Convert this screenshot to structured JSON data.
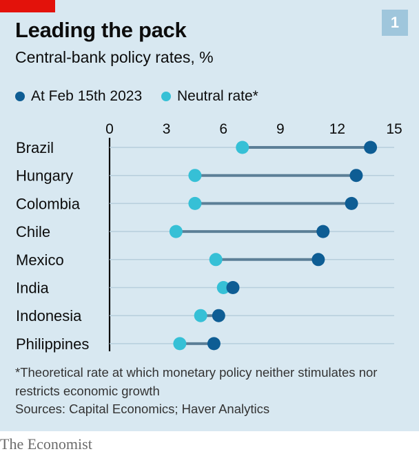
{
  "header": {
    "title": "Leading the pack",
    "subtitle": "Central-bank policy rates, %",
    "chart_number": "1"
  },
  "colors": {
    "panel_background": "#d8e8f1",
    "current_rate": "#0e5d94",
    "neutral_rate": "#36c0d6",
    "connector": "#5c7f97",
    "badge": "#9fc6dc",
    "brand_red": "#e3120b"
  },
  "legend": [
    {
      "label": "At Feb 15th 2023",
      "color": "#0e5d94"
    },
    {
      "label": "Neutral rate*",
      "color": "#36c0d6"
    }
  ],
  "chart_data": {
    "type": "scatter",
    "subtype": "dumbbell",
    "title": "Leading the pack",
    "subtitle": "Central-bank policy rates, %",
    "xlim": [
      0,
      15
    ],
    "xticks": [
      0,
      3,
      6,
      9,
      12,
      15
    ],
    "grid": false,
    "legend_position": "top-left",
    "categories": [
      "Brazil",
      "Hungary",
      "Colombia",
      "Chile",
      "Mexico",
      "India",
      "Indonesia",
      "Philippines"
    ],
    "series": [
      {
        "name": "At Feb 15th 2023",
        "values": [
          13.75,
          13.0,
          12.75,
          11.25,
          11.0,
          6.5,
          5.75,
          5.5
        ]
      },
      {
        "name": "Neutral rate*",
        "values": [
          7.0,
          4.5,
          4.5,
          3.5,
          5.6,
          6.0,
          4.8,
          3.7
        ]
      }
    ]
  },
  "footer": {
    "footnote": "*Theoretical rate at which monetary policy neither stimulates nor restricts economic growth",
    "source": "Sources: Capital Economics; Haver Analytics",
    "brand": "The Economist"
  }
}
